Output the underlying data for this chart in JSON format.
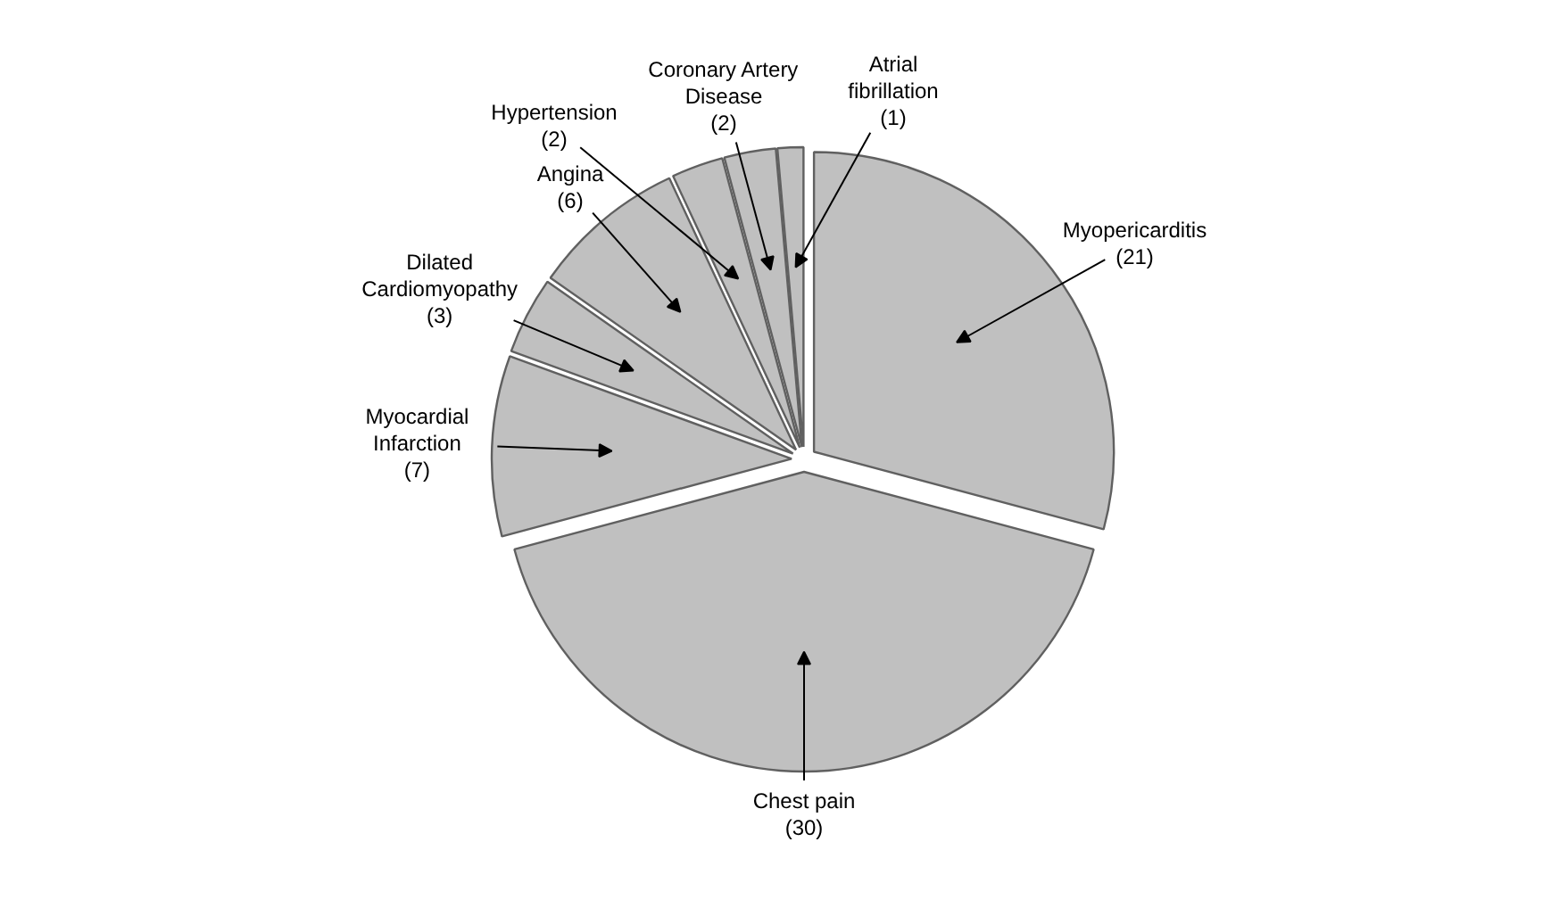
{
  "chart_data": {
    "type": "pie",
    "categories": [
      "Myopericarditis",
      "Chest pain",
      "Myocardial Infarction",
      "Dilated Cardiomyopathy",
      "Angina",
      "Hypertension",
      "Coronary Artery Disease",
      "Atrial fibrillation"
    ],
    "values": [
      21,
      30,
      7,
      3,
      6,
      2,
      2,
      1
    ],
    "value_labels": [
      "(21)",
      "(30)",
      "(7)",
      "(3)",
      "(6)",
      "(2)",
      "(2)",
      "(1)"
    ],
    "colors": [
      "#c0c0c0",
      "#c0c0c0",
      "#c0c0c0",
      "#c0c0c0",
      "#c0c0c0",
      "#c0c0c0",
      "#c0c0c0",
      "#c0c0c0"
    ]
  }
}
